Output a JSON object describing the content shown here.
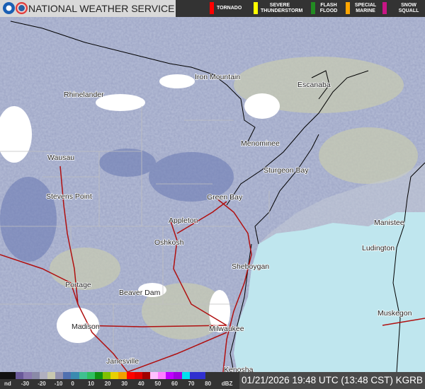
{
  "header": {
    "title": "NATIONAL WEATHER SERVICE",
    "logos": [
      "noaa-logo",
      "nws-logo"
    ]
  },
  "warnings": [
    {
      "label": "TORNADO",
      "color": "#ff0000"
    },
    {
      "label": "SEVERE THUNDERSTORM",
      "color": "#ffff00"
    },
    {
      "label": "FLASH FLOOD",
      "color": "#228b22"
    },
    {
      "label": "SPECIAL MARINE",
      "color": "#ffa500"
    },
    {
      "label": "SNOW SQUALL",
      "color": "#c71585"
    }
  ],
  "cities": [
    "Iron Mountain",
    "Escanaba",
    "Rhinelander",
    "Menominee",
    "Wausau",
    "Sturgeon Bay",
    "Stevens Point",
    "Green Bay",
    "Appleton",
    "Manistee",
    "Oshkosh",
    "Ludington",
    "Sheboygan",
    "Portage",
    "Beaver Dam",
    "Muskegon",
    "Madison",
    "Milwaukee",
    "Janesville",
    "Kenosha"
  ],
  "legend": {
    "ticks": [
      "nd",
      "-30",
      "-20",
      "-10",
      "0",
      "10",
      "20",
      "30",
      "40",
      "50",
      "60",
      "70",
      "80",
      "dBZ"
    ],
    "colors": [
      "#111111",
      "#111111",
      "#6a5a9a",
      "#8a7ab0",
      "#8a8aa8",
      "#b0b0c0",
      "#c8c8b0",
      "#9090b0",
      "#5070b0",
      "#3a8ab0",
      "#40c090",
      "#30c060",
      "#109010",
      "#80c000",
      "#e8d000",
      "#f0a000",
      "#ff0000",
      "#e00000",
      "#a00000",
      "#ffc0ff",
      "#ff80ff",
      "#c000ff",
      "#a000e0",
      "#00e0f0",
      "#3030d0",
      "#3030d0"
    ]
  },
  "timestamp": "01/21/2026 19:48 UTC (13:48 CST) KGRB"
}
